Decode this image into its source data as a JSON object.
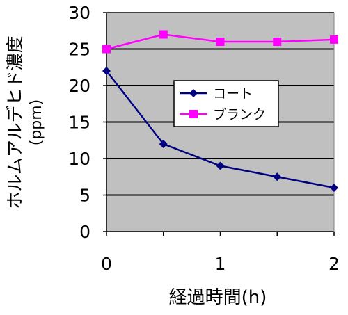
{
  "chart_data": {
    "type": "line",
    "xlabel": "経過時間(h)",
    "ylabel": "ホルムアルデヒド濃度",
    "ylabel_unit": "(ppm)",
    "x": [
      0,
      0.5,
      1,
      1.5,
      2
    ],
    "xticks": [
      0,
      1,
      2
    ],
    "xlim": [
      0,
      2
    ],
    "ylim": [
      0,
      30
    ],
    "yticks": [
      0,
      5,
      10,
      15,
      20,
      25,
      30
    ],
    "grid": "horizontal",
    "plot_background": "#c0c0c0",
    "legend_position": "center",
    "series": [
      {
        "name": "コート",
        "values": [
          22,
          12,
          9,
          7.5,
          6
        ],
        "color": "#000080",
        "marker": "diamond"
      },
      {
        "name": "ブランク",
        "values": [
          25,
          27,
          26,
          26,
          26.3
        ],
        "color": "#ff00ff",
        "marker": "square"
      }
    ]
  }
}
